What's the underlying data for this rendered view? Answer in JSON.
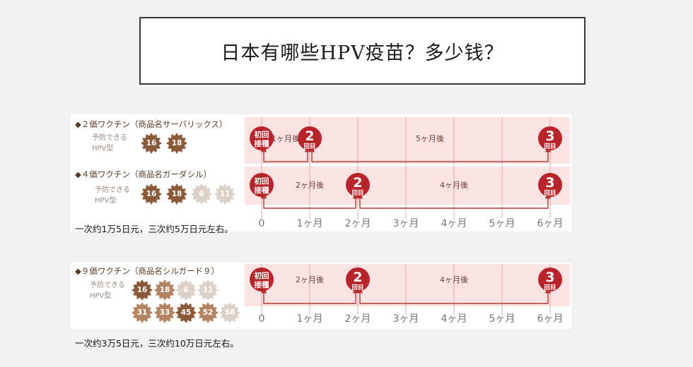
{
  "title": "日本有哪些HPV疫苗？多少钱？",
  "colors": {
    "accent": "#b8242a",
    "band": "#fbe3e3",
    "arrow": "#b23a35",
    "grid": "#e7a8a8"
  },
  "axis_ticks": [
    "0",
    "1ヶ月",
    "2ヶ月",
    "3ヶ月",
    "4ヶ月",
    "5ヶ月",
    "6ヶ月"
  ],
  "badges": {
    "initial": [
      "初回",
      "接種"
    ],
    "second": [
      "2",
      "回目"
    ],
    "third": [
      "3",
      "回目"
    ]
  },
  "sections": [
    {
      "title": "◆２価ワクチン（商品名サーバリックス）",
      "yobo_label": "予防できる\nHPV型",
      "types": [
        "16",
        "18"
      ],
      "dose_months": [
        0,
        1,
        6
      ],
      "intervals": [
        "1ヶ月後",
        "5ヶ月後"
      ]
    },
    {
      "title": "◆４価ワクチン（商品名ガーダシル）",
      "yobo_label": "予防できる\nHPV型",
      "types": [
        "16",
        "18",
        "6",
        "11"
      ],
      "dose_months": [
        0,
        2,
        6
      ],
      "intervals": [
        "2ヶ月後",
        "4ヶ月後"
      ]
    },
    {
      "title": "◆９価ワクチン（商品名シルガード９）",
      "yobo_label": "予防できる\nHPV型",
      "types": [
        "16",
        "18",
        "6",
        "11",
        "31",
        "33",
        "45",
        "52",
        "58"
      ],
      "dose_months": [
        0,
        2,
        6
      ],
      "intervals": [
        "2ヶ月後",
        "4ヶ月後"
      ]
    }
  ],
  "notes": {
    "price_4v": "一次约1万5日元，三次约5万日元左右。",
    "price_9v": "一次约3万5日元，三次约10万日元左右。"
  }
}
